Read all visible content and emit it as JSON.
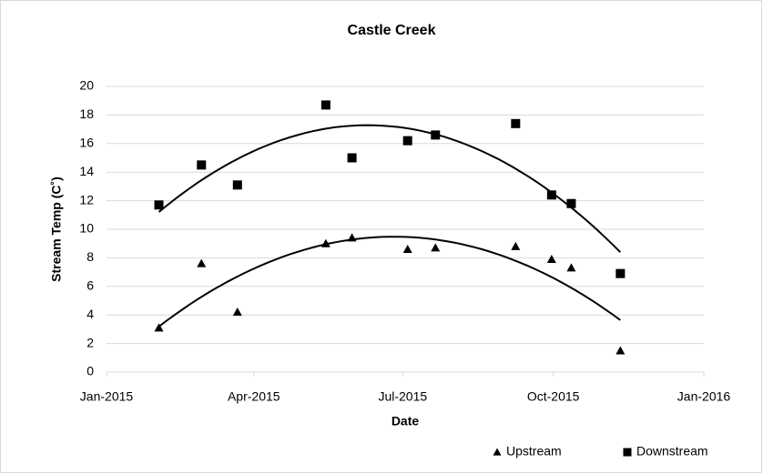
{
  "chart_data": {
    "type": "scatter",
    "title": "Castle Creek",
    "x_label": "Date",
    "y_label": "Stream Temp (C˚)",
    "xlim": [
      0,
      365
    ],
    "xticks": [
      {
        "value": 0,
        "label": "Jan-2015"
      },
      {
        "value": 90,
        "label": "Apr-2015"
      },
      {
        "value": 181,
        "label": "Jul-2015"
      },
      {
        "value": 273,
        "label": "Oct-2015"
      },
      {
        "value": 365,
        "label": "Jan-2016"
      }
    ],
    "ylim": [
      0,
      20
    ],
    "yticks": [
      0,
      2,
      4,
      6,
      8,
      10,
      12,
      14,
      16,
      18,
      20
    ],
    "grid": true,
    "trendline": "polynomial",
    "series": [
      {
        "name": "Upstream",
        "color": "#000000",
        "marker": "triangle",
        "x": [
          32,
          58,
          80,
          134,
          150,
          184,
          201,
          250,
          272,
          284,
          314
        ],
        "values": [
          3.1,
          7.6,
          4.2,
          9.0,
          9.4,
          8.6,
          8.7,
          8.8,
          7.9,
          7.3,
          1.5
        ]
      },
      {
        "name": "Downstream",
        "color": "#000000",
        "marker": "square",
        "x": [
          32,
          58,
          80,
          134,
          150,
          184,
          201,
          250,
          272,
          284,
          314
        ],
        "values": [
          11.7,
          14.5,
          13.1,
          18.7,
          15.0,
          16.2,
          16.6,
          17.4,
          12.4,
          11.8,
          6.9
        ]
      }
    ]
  }
}
